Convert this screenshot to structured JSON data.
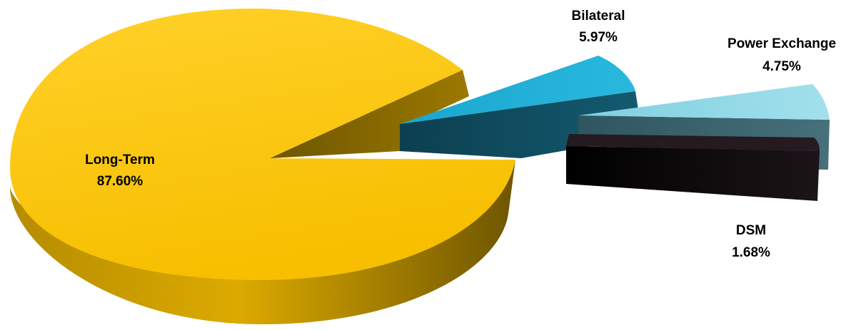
{
  "chart_data": {
    "type": "pie",
    "title": "",
    "categories": [
      "Long-Term",
      "Bilateral",
      "Power Exchange",
      "DSM"
    ],
    "values": [
      87.6,
      5.97,
      4.75,
      1.68
    ],
    "value_labels": [
      "87.60%",
      "5.97%",
      "4.75%",
      "1.68%"
    ],
    "legend": "none",
    "colors": {
      "Long-Term": "#FAC200",
      "Bilateral": "#1EB0D6",
      "Power Exchange": "#8CD6E4",
      "DSM": "#1A1218"
    }
  }
}
